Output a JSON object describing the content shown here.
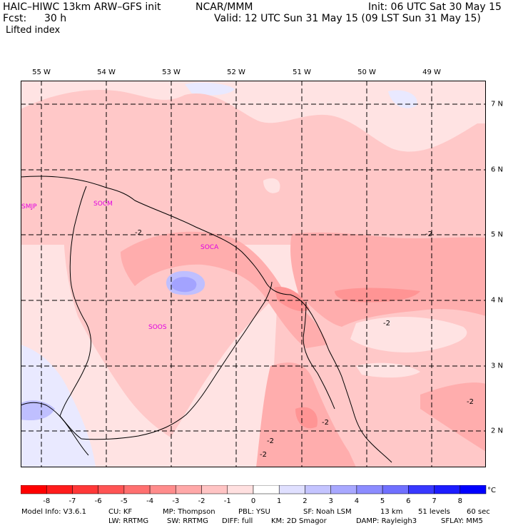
{
  "header": {
    "title_left": "HAIC–HIWC 13km ARW–GFS init",
    "title_center": "NCAR/MMM",
    "init": "Init: 06 UTC Sat 30 May 15",
    "fcst_label": "Fcst:",
    "fcst_value": "30 h",
    "valid": "Valid: 12 UTC Sun 31 May 15 (09 LST Sun 31 May 15)",
    "field": "Lifted index"
  },
  "map": {
    "longitude_labels": [
      "55 W",
      "54 W",
      "53 W",
      "52 W",
      "51 W",
      "50 W",
      "49 W"
    ],
    "latitude_labels": [
      "7 N",
      "6 N",
      "5 N",
      "4 N",
      "3 N",
      "2 N"
    ],
    "stations": [
      "SMJP",
      "SOCM",
      "SOCA",
      "SOOS"
    ],
    "contour_labels": [
      "-2",
      "-2",
      "-2",
      "-2",
      "-2",
      "-2",
      "-2"
    ],
    "colors": {
      "pale_pink": "#ffe3e3",
      "light_pink": "#ffc8c8",
      "pink": "#ffadad",
      "pink_strong": "#ff9494",
      "pale_blue": "#e9e9ff",
      "light_blue": "#bfbfff",
      "medium_blue": "#a3a3ff",
      "station": "#e000e0"
    }
  },
  "colorbar": {
    "ticks": [
      "-8",
      "-7",
      "-6",
      "-5",
      "-4",
      "-3",
      "-2",
      "-1",
      "0",
      "1",
      "2",
      "3",
      "4",
      "5",
      "6",
      "7",
      "8"
    ],
    "unit": "°C",
    "colors": [
      "#ff0000",
      "#ff1c1c",
      "#ff3838",
      "#ff5454",
      "#ff7070",
      "#ff8c8c",
      "#ffa8a8",
      "#ffc4c4",
      "#ffe0e0",
      "#ffffff",
      "#e0e0ff",
      "#c4c4ff",
      "#a8a8ff",
      "#8c8cff",
      "#7070ff",
      "#3838ff",
      "#1c1cff",
      "#0000ff"
    ]
  },
  "footer": {
    "line1": [
      "Model Info: V3.6.1",
      "CU: KF",
      "MP: Thompson",
      "PBL: YSU",
      "SF: Noah LSM",
      "13 km",
      "51 levels",
      "60 sec"
    ],
    "line2": [
      "LW: RRTMG",
      "SW: RRTMG",
      "DIFF: full",
      "KM: 2D Smagor",
      "DAMP: Rayleigh3",
      "SFLAY: MM5"
    ]
  }
}
